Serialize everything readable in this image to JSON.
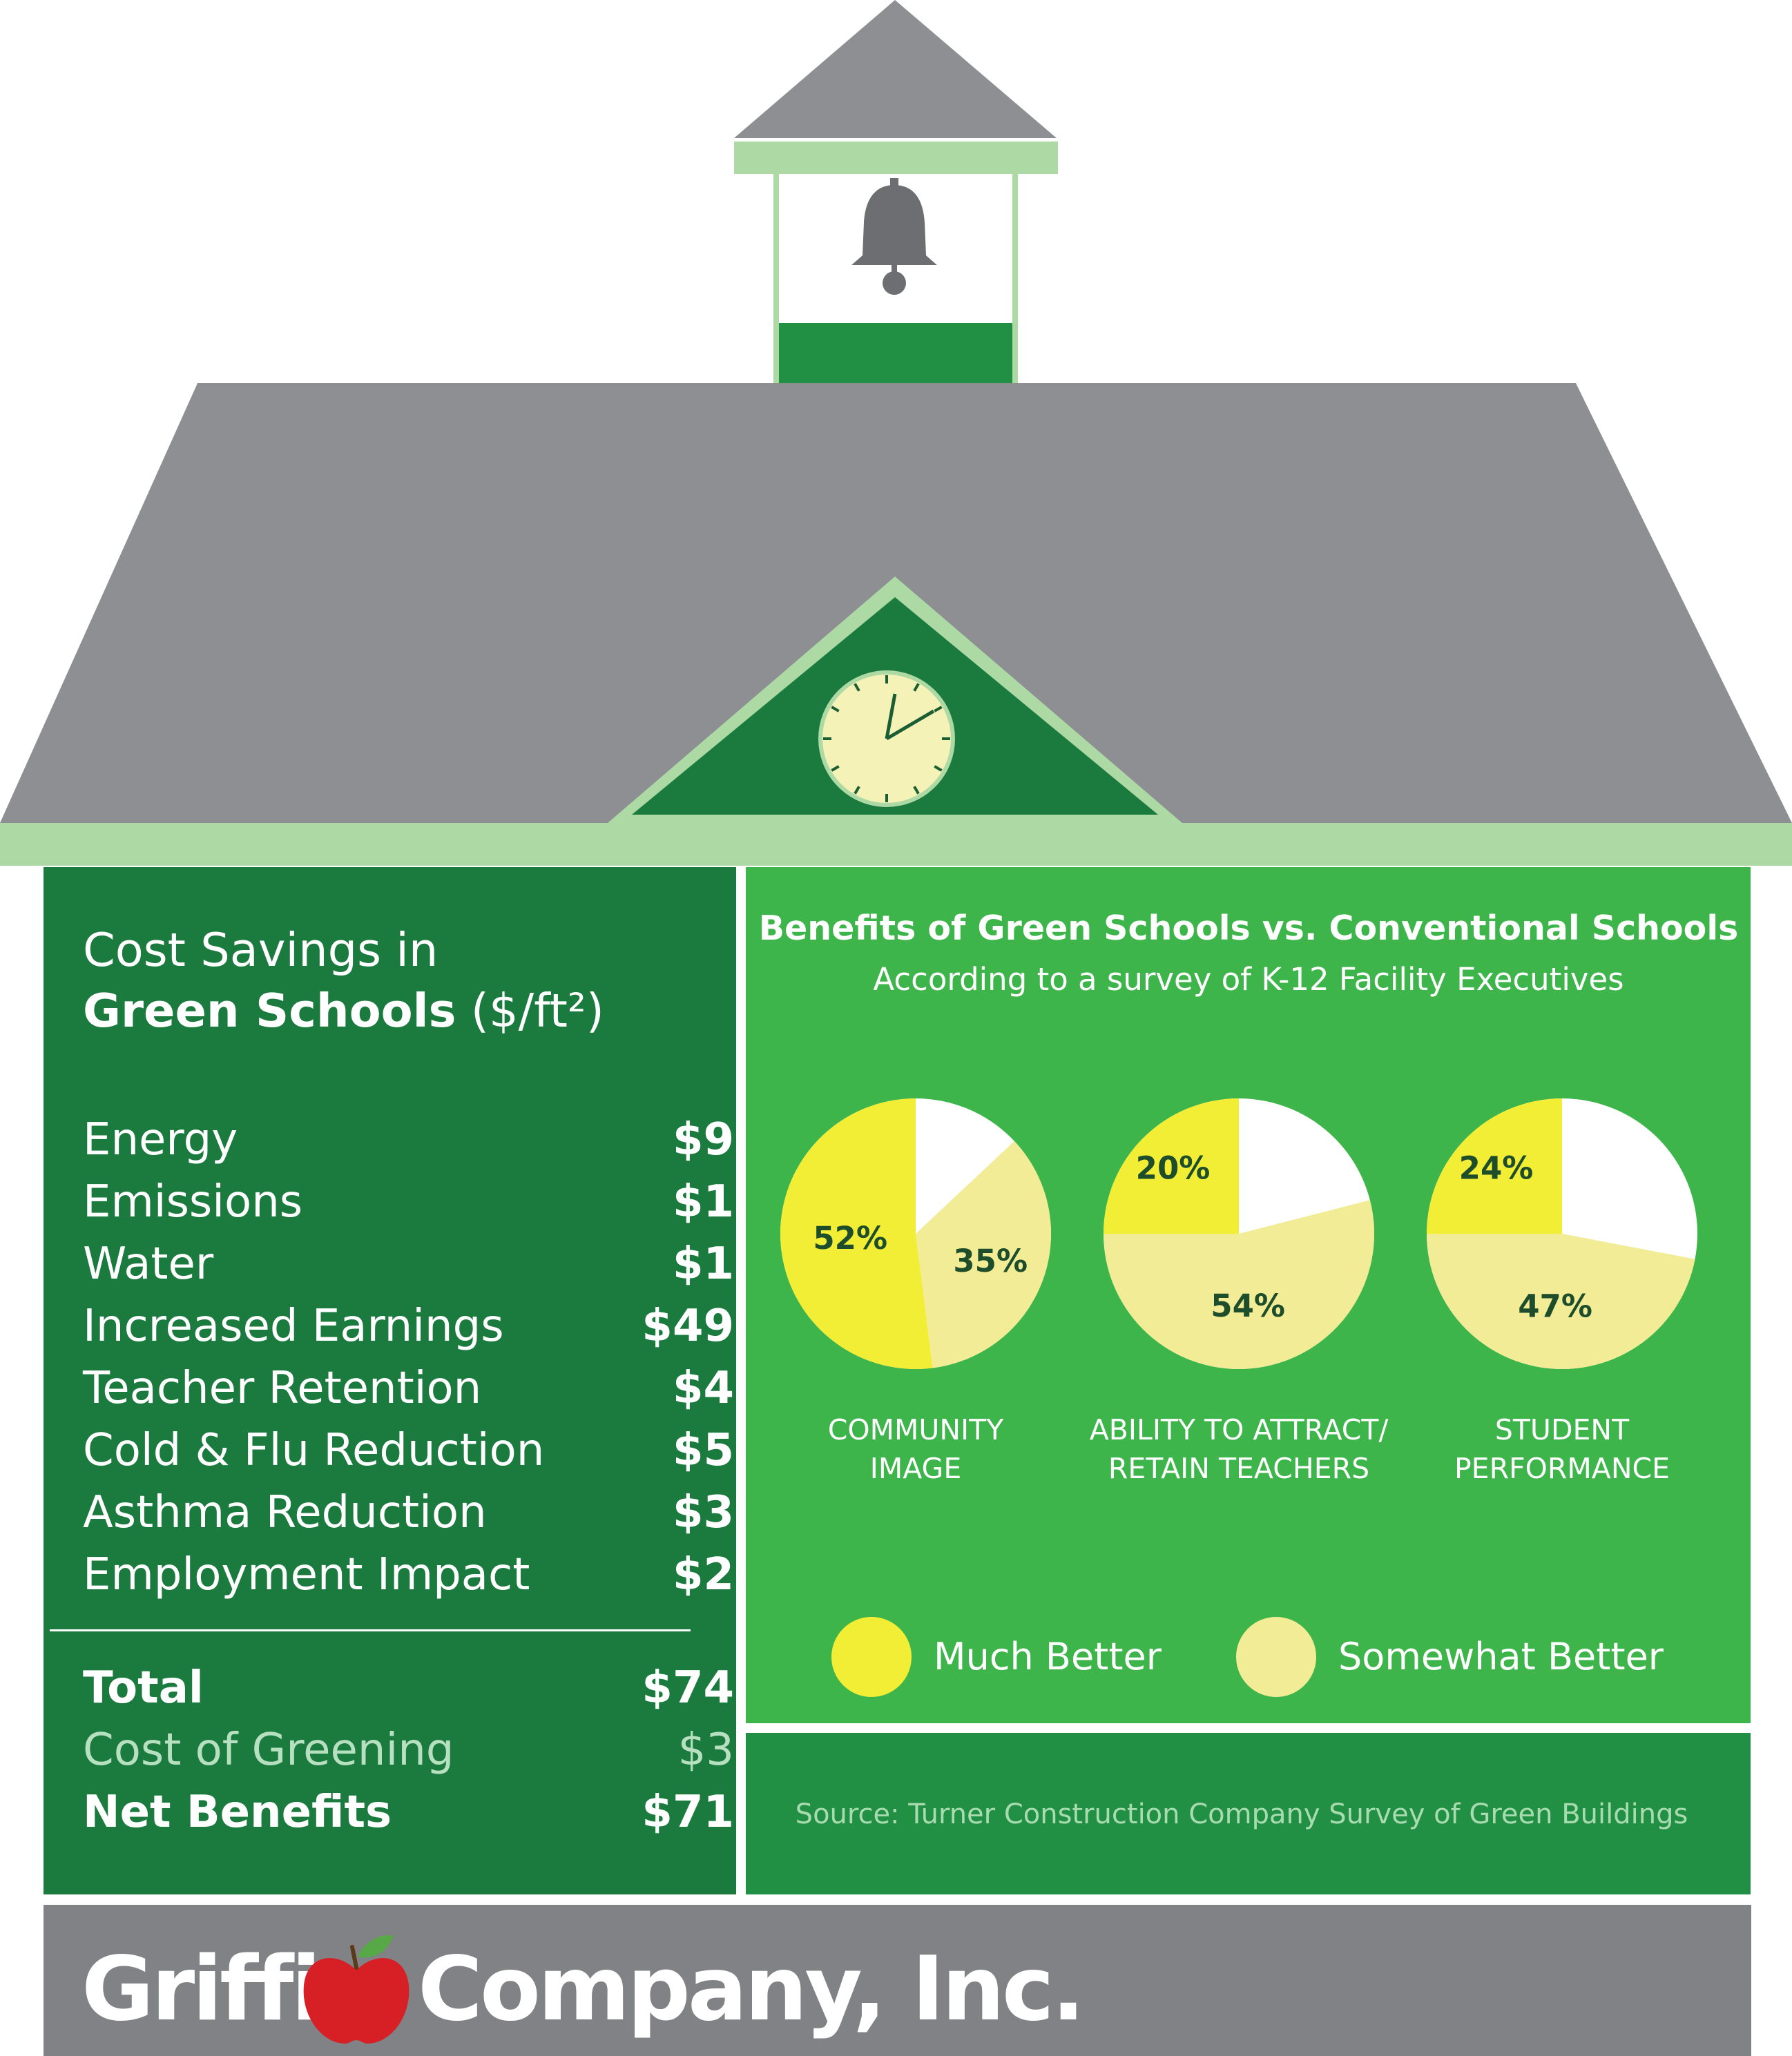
{
  "cost_savings": {
    "title_line1": "Cost Savings in",
    "title_line2_bold": "Green Schools",
    "title_line2_unit": "($/ft²)",
    "items": [
      {
        "label": "Energy",
        "value": "$9"
      },
      {
        "label": "Emissions",
        "value": "$1"
      },
      {
        "label": "Water",
        "value": "$1"
      },
      {
        "label": "Increased Earnings",
        "value": "$49"
      },
      {
        "label": "Teacher Retention",
        "value": "$4"
      },
      {
        "label": "Cold & Flu Reduction",
        "value": "$5"
      },
      {
        "label": "Asthma Reduction",
        "value": "$3"
      },
      {
        "label": "Employment Impact",
        "value": "$2"
      }
    ],
    "total": {
      "label": "Total",
      "value": "$74"
    },
    "cost": {
      "label": "Cost of Greening",
      "value": "$3"
    },
    "net": {
      "label": "Net Benefits",
      "value": "$71"
    }
  },
  "benefits": {
    "title": "Benefits of Green Schools vs. Conventional Schools",
    "subtitle": "According to a survey of K-12 Facility Executives",
    "legend": [
      {
        "label": "Much Better",
        "color": "#f2ee36"
      },
      {
        "label": "Somewhat Better",
        "color": "#f1ec95"
      }
    ]
  },
  "source": "Source: Turner Construction Company Survey of Green Buildings",
  "brand": {
    "name_left": "Griffin",
    "name_right": "Company, Inc.",
    "logo_icon": "apple-icon"
  },
  "colors": {
    "roof": "#8e8f92",
    "trim": "#acd9a4",
    "dark_green": "#1b7a3e",
    "medium_green": "#229044",
    "bright_green": "#3db54a",
    "much_better": "#f2ee36",
    "somewhat_better": "#f1ec95",
    "apple_red": "#d71f26"
  },
  "chart_data": [
    {
      "type": "pie",
      "title": "COMMUNITY IMAGE",
      "categories": [
        "Much Better",
        "Somewhat Better"
      ],
      "values": [
        52,
        35
      ],
      "labels": [
        "52%",
        "35%"
      ]
    },
    {
      "type": "pie",
      "title": "ABILITY TO ATTRACT/ RETAIN TEACHERS",
      "categories": [
        "Much Better",
        "Somewhat Better"
      ],
      "values": [
        20,
        54
      ],
      "labels": [
        "20%",
        "54%"
      ]
    },
    {
      "type": "pie",
      "title": "STUDENT PERFORMANCE",
      "categories": [
        "Much Better",
        "Somewhat Better"
      ],
      "values": [
        24,
        47
      ],
      "labels": [
        "24%",
        "47%"
      ]
    }
  ]
}
